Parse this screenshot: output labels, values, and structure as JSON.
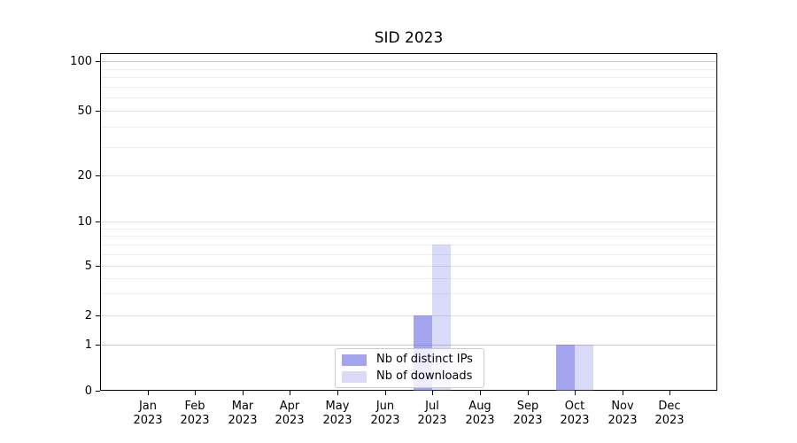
{
  "chart_data": {
    "type": "bar",
    "title": "SID 2023",
    "categories": [
      "Jan",
      "Feb",
      "Mar",
      "Apr",
      "May",
      "Jun",
      "Jul",
      "Aug",
      "Sep",
      "Oct",
      "Nov",
      "Dec"
    ],
    "category_year": "2023",
    "series": [
      {
        "name": "Nb of distinct IPs",
        "color": "rgba(105,105,228,0.6)",
        "values": [
          0,
          0,
          0,
          0,
          0,
          0,
          2,
          0,
          0,
          1,
          0,
          0
        ]
      },
      {
        "name": "Nb of downloads",
        "color": "rgba(105,105,228,0.25)",
        "values": [
          0,
          0,
          0,
          0,
          0,
          0,
          7,
          0,
          0,
          1,
          0,
          0
        ]
      }
    ],
    "xlabel": "",
    "ylabel": "",
    "ylim": [
      0,
      100
    ],
    "yscale": "log-like (linear below 1)",
    "y_major_ticks": [
      0,
      1,
      2,
      5,
      10,
      20,
      50,
      100
    ],
    "y_minor_ticks": [
      3,
      4,
      6,
      7,
      8,
      9,
      30,
      40,
      60,
      70,
      80,
      90
    ],
    "grid": true,
    "legend_position": "lower center"
  },
  "colors": {
    "background": "#ffffff",
    "axis": "#000000",
    "grid_minor": "#eeeeee",
    "grid_major": "#e3e3e3",
    "grid_decade": "#c8c8c8",
    "legend_border": "#cccccc",
    "legend_background": "rgba(255,255,255,0.8)",
    "text": "#000000"
  }
}
